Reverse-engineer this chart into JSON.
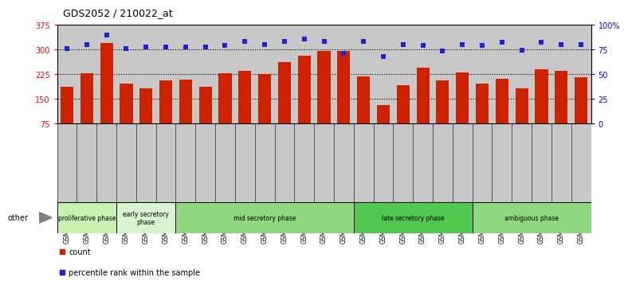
{
  "title": "GDS2052 / 210022_at",
  "samples": [
    "GSM109814",
    "GSM109815",
    "GSM109816",
    "GSM109817",
    "GSM109820",
    "GSM109821",
    "GSM109822",
    "GSM109824",
    "GSM109825",
    "GSM109826",
    "GSM109827",
    "GSM109828",
    "GSM109829",
    "GSM109830",
    "GSM109831",
    "GSM109834",
    "GSM109835",
    "GSM109836",
    "GSM109837",
    "GSM109838",
    "GSM109839",
    "GSM109818",
    "GSM109819",
    "GSM109823",
    "GSM109832",
    "GSM109833",
    "GSM109840"
  ],
  "counts": [
    185,
    228,
    320,
    195,
    180,
    205,
    208,
    185,
    228,
    235,
    225,
    260,
    280,
    295,
    295,
    218,
    130,
    190,
    245,
    205,
    230,
    195,
    210,
    180,
    240,
    235,
    215
  ],
  "percentiles": [
    76,
    80,
    89,
    76,
    77,
    77,
    77,
    77,
    79,
    83,
    80,
    83,
    85,
    83,
    71,
    83,
    68,
    80,
    79,
    73,
    80,
    79,
    82,
    74,
    82,
    80,
    80
  ],
  "ylim_left": [
    75,
    375
  ],
  "ylim_right": [
    0,
    100
  ],
  "yticks_left": [
    75,
    150,
    225,
    300,
    375
  ],
  "yticks_right": [
    0,
    25,
    50,
    75,
    100
  ],
  "ytick_labels_right": [
    "0",
    "25",
    "50",
    "75",
    "100%"
  ],
  "bar_color": "#cc2200",
  "dot_color": "#2222cc",
  "plot_bg_color": "#c8c8c8",
  "xtick_bg_color": "#c8c8c8",
  "hlines": [
    150,
    225,
    300
  ],
  "phase_info": [
    {
      "name": "proliferative phase",
      "start": 0,
      "end": 3,
      "color": "#c8f0b0"
    },
    {
      "name": "early secretory\nphase",
      "start": 3,
      "end": 6,
      "color": "#d8f5d0"
    },
    {
      "name": "mid secretory phase",
      "start": 6,
      "end": 15,
      "color": "#90d880"
    },
    {
      "name": "late secretory phase",
      "start": 15,
      "end": 21,
      "color": "#50c850"
    },
    {
      "name": "ambiguous phase",
      "start": 21,
      "end": 27,
      "color": "#90d880"
    }
  ],
  "legend_count": "count",
  "legend_percentile": "percentile rank within the sample",
  "title_fontsize": 9,
  "bar_width": 0.65
}
